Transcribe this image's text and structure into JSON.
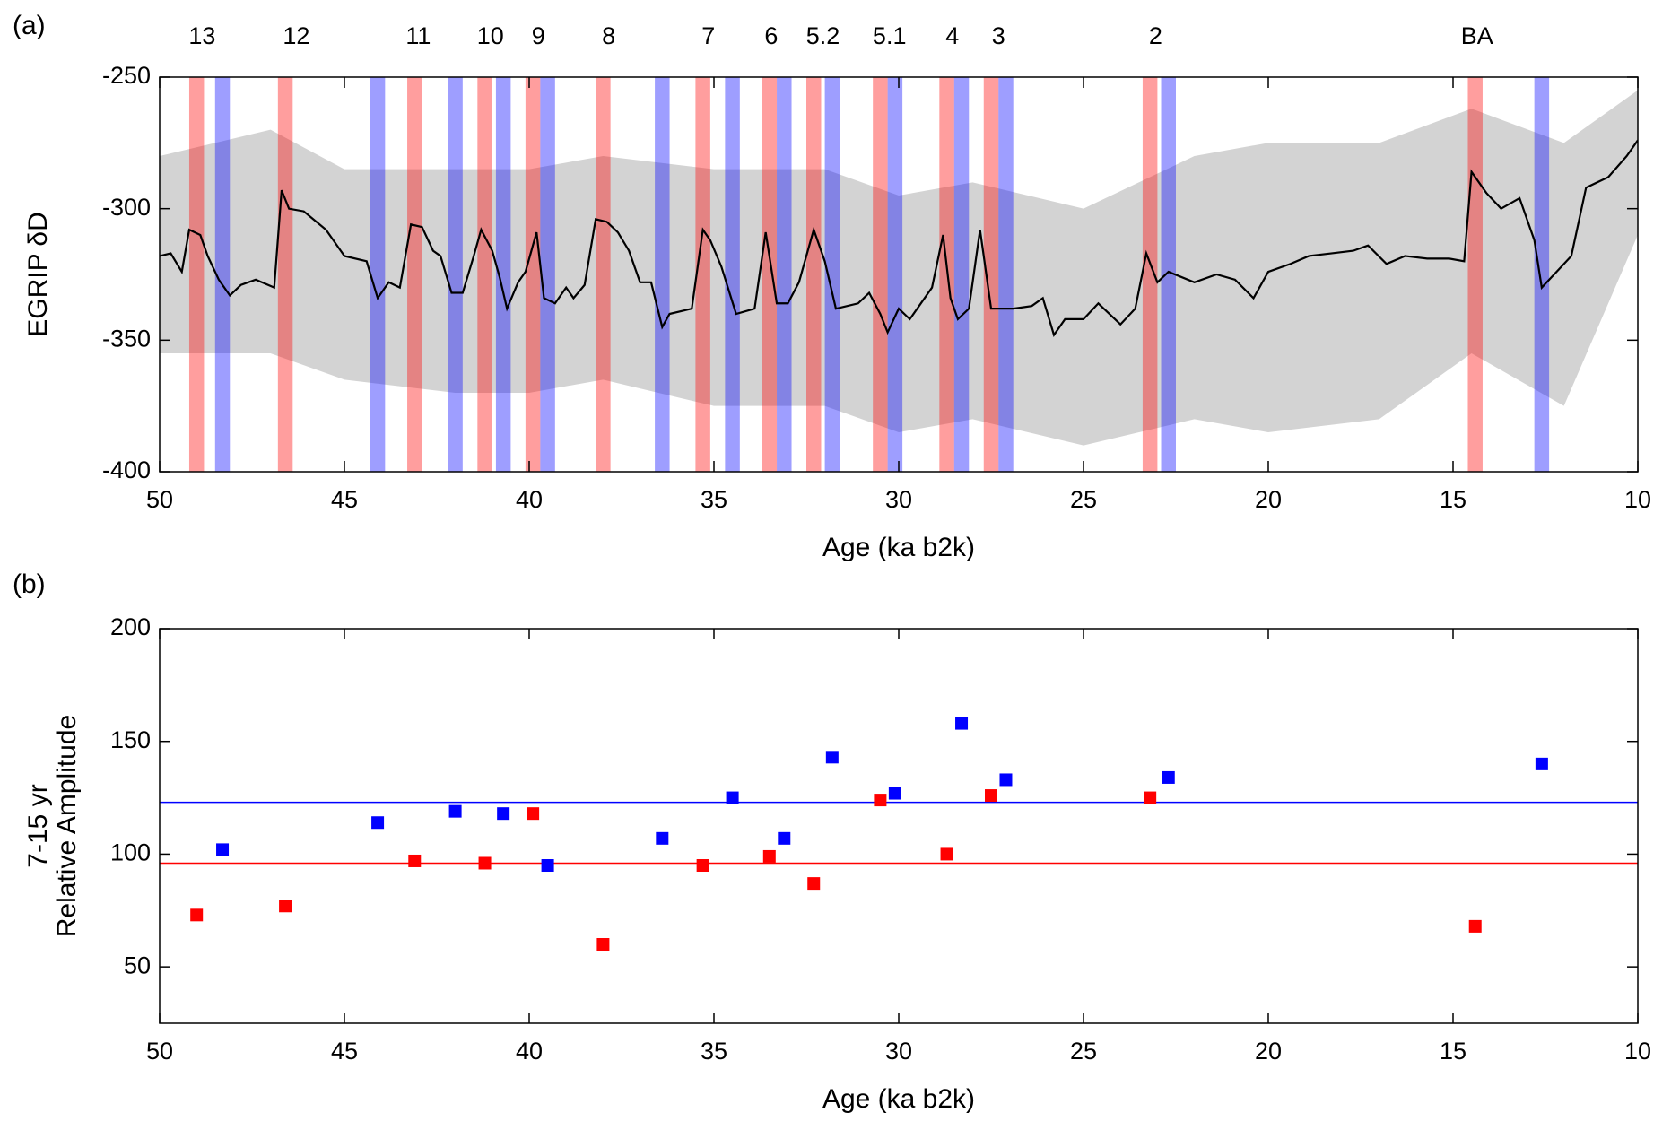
{
  "chart_data": [
    {
      "type": "line",
      "panel_label": "(a)",
      "ylabel": "EGRIP δD",
      "xlabel": "Age (ka b2k)",
      "xlim": [
        50,
        10
      ],
      "xticks": [
        50,
        45,
        40,
        35,
        30,
        25,
        20,
        15,
        10
      ],
      "ylim": [
        -400,
        -250
      ],
      "yticks": [
        -400,
        -350,
        -300,
        -250
      ],
      "event_labels": [
        "13",
        "12",
        "11",
        "10",
        "9",
        "8",
        "7",
        "6",
        "5.2",
        "5.1",
        "4",
        "3",
        "2",
        "BA"
      ],
      "event_x": [
        48.85,
        46.3,
        43.0,
        41.05,
        39.75,
        37.85,
        35.15,
        33.45,
        32.05,
        30.25,
        28.55,
        27.3,
        23.05,
        14.35
      ],
      "bands": [
        {
          "color": "#ff0000",
          "x": [
            49.0,
            46.6,
            43.1,
            41.2,
            39.9,
            38.0,
            35.3,
            33.5,
            32.3,
            30.5,
            28.7,
            27.5,
            23.2,
            14.4
          ]
        },
        {
          "color": "#0000ff",
          "x": [
            48.3,
            44.1,
            42.0,
            40.7,
            39.5,
            36.4,
            34.5,
            33.1,
            31.8,
            30.1,
            28.3,
            27.1,
            22.7,
            12.6
          ]
        }
      ],
      "envelope": {
        "color": "#d3d3d3",
        "x": [
          50,
          47,
          45,
          42,
          40,
          38,
          35,
          32,
          30,
          28,
          25,
          22,
          20,
          17,
          14.5,
          12,
          10
        ],
        "high": [
          -280,
          -270,
          -285,
          -285,
          -285,
          -280,
          -285,
          -285,
          -295,
          -290,
          -300,
          -280,
          -275,
          -275,
          -262,
          -275,
          -255
        ],
        "low": [
          -355,
          -355,
          -365,
          -370,
          -370,
          -365,
          -375,
          -375,
          -385,
          -380,
          -390,
          -380,
          -385,
          -380,
          -355,
          -375,
          -310
        ]
      },
      "series": [
        {
          "color": "#000000",
          "x": [
            50.0,
            49.7,
            49.4,
            49.2,
            48.9,
            48.7,
            48.4,
            48.1,
            47.8,
            47.4,
            46.9,
            46.7,
            46.5,
            46.1,
            45.5,
            45.0,
            44.4,
            44.1,
            43.8,
            43.5,
            43.2,
            42.9,
            42.6,
            42.4,
            42.1,
            41.8,
            41.5,
            41.3,
            41.0,
            40.8,
            40.6,
            40.3,
            40.1,
            39.8,
            39.6,
            39.3,
            39.0,
            38.8,
            38.5,
            38.2,
            37.9,
            37.6,
            37.3,
            37.0,
            36.7,
            36.4,
            36.2,
            35.6,
            35.3,
            35.1,
            34.8,
            34.4,
            33.9,
            33.6,
            33.3,
            33.0,
            32.7,
            32.3,
            32.0,
            31.7,
            31.1,
            30.8,
            30.5,
            30.3,
            30.0,
            29.7,
            29.1,
            28.8,
            28.6,
            28.4,
            28.1,
            27.8,
            27.5,
            26.9,
            26.4,
            26.1,
            25.8,
            25.5,
            25.0,
            24.6,
            24.0,
            23.6,
            23.3,
            23.0,
            22.7,
            22.0,
            21.4,
            20.9,
            20.4,
            20.0,
            19.4,
            18.9,
            18.3,
            17.7,
            17.3,
            16.8,
            16.3,
            15.7,
            15.1,
            14.7,
            14.5,
            14.1,
            13.7,
            13.2,
            12.8,
            12.6,
            12.2,
            11.8,
            11.4,
            10.8,
            10.3,
            10.0
          ],
          "values": [
            -318,
            -317,
            -324,
            -308,
            -310,
            -318,
            -327,
            -333,
            -329,
            -327,
            -330,
            -293,
            -300,
            -301,
            -308,
            -318,
            -320,
            -334,
            -328,
            -330,
            -306,
            -307,
            -316,
            -318,
            -332,
            -332,
            -318,
            -308,
            -316,
            -326,
            -338,
            -328,
            -324,
            -309,
            -334,
            -336,
            -330,
            -334,
            -329,
            -304,
            -305,
            -309,
            -316,
            -328,
            -328,
            -345,
            -340,
            -338,
            -308,
            -312,
            -322,
            -340,
            -338,
            -309,
            -336,
            -336,
            -328,
            -308,
            -320,
            -338,
            -336,
            -332,
            -340,
            -347,
            -338,
            -342,
            -330,
            -310,
            -334,
            -342,
            -338,
            -308,
            -338,
            -338,
            -337,
            -334,
            -348,
            -342,
            -342,
            -336,
            -344,
            -338,
            -317,
            -328,
            -324,
            -328,
            -325,
            -327,
            -334,
            -324,
            -321,
            -318,
            -317,
            -316,
            -314,
            -321,
            -318,
            -319,
            -319,
            -320,
            -286,
            -294,
            -300,
            -296,
            -312,
            -330,
            -324,
            -318,
            -292,
            -288,
            -280,
            -274
          ]
        }
      ]
    },
    {
      "type": "scatter",
      "panel_label": "(b)",
      "ylabel": [
        "7-15 yr",
        "Relative Amplitude"
      ],
      "xlabel": "Age (ka b2k)",
      "xlim": [
        50,
        10
      ],
      "xticks": [
        50,
        45,
        40,
        35,
        30,
        25,
        20,
        15,
        10
      ],
      "ylim": [
        25,
        200
      ],
      "yticks": [
        50,
        100,
        150,
        200
      ],
      "series": [
        {
          "color": "#ff0000",
          "x": [
            49.0,
            46.6,
            43.1,
            41.2,
            39.9,
            38.0,
            35.3,
            33.5,
            32.3,
            30.5,
            28.7,
            27.5,
            23.2,
            14.4
          ],
          "values": [
            73,
            77,
            97,
            96,
            118,
            60,
            95,
            99,
            87,
            124,
            100,
            126,
            125,
            68
          ]
        },
        {
          "color": "#0000ff",
          "x": [
            48.3,
            44.1,
            42.0,
            40.7,
            39.5,
            36.4,
            34.5,
            33.1,
            31.8,
            30.1,
            28.3,
            27.1,
            22.7,
            12.6
          ],
          "values": [
            102,
            114,
            119,
            118,
            95,
            107,
            125,
            107,
            143,
            127,
            158,
            133,
            134,
            140
          ]
        }
      ],
      "hlines": [
        {
          "color": "#0000ff",
          "value": 123
        },
        {
          "color": "#ff0000",
          "value": 96
        }
      ]
    }
  ]
}
